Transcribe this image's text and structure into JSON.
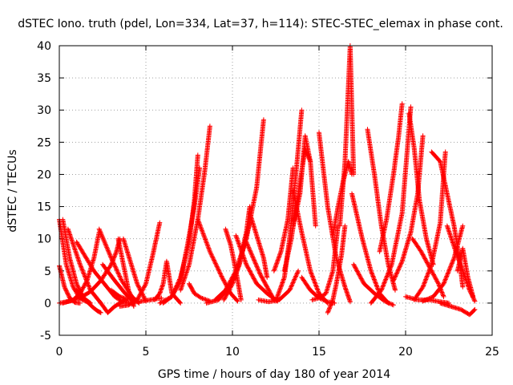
{
  "chart_data": {
    "type": "scatter",
    "title": "dSTEC Iono. truth (pdel, Lon=334, Lat=37, h=114): STEC-STEC_elemax in phase cont.",
    "xlabel": "GPS time / hours of day 180 of year 2014",
    "ylabel": "dSTEC  / TECUs",
    "xlim": [
      0,
      25
    ],
    "ylim": [
      -5,
      40
    ],
    "x_ticks": [
      "0",
      "5",
      "10",
      "15",
      "20",
      "25"
    ],
    "y_ticks": [
      "-5",
      "0",
      "5",
      "10",
      "15",
      "20",
      "25",
      "30",
      "35",
      "40"
    ],
    "grid": true,
    "marker": "+",
    "color": "#ff0000",
    "series": [
      {
        "x": [
          0.0,
          0.4,
          0.8,
          1.2,
          1.6
        ],
        "y": [
          13.0,
          6.0,
          2.5,
          0.7,
          0.2
        ]
      },
      {
        "x": [
          0.0,
          0.3,
          0.6,
          0.9,
          1.2
        ],
        "y": [
          5.8,
          2.5,
          0.8,
          0.1,
          0.0
        ]
      },
      {
        "x": [
          0.2,
          0.6,
          1.0,
          1.4,
          1.8
        ],
        "y": [
          13.0,
          7.0,
          3.0,
          0.8,
          0.0
        ]
      },
      {
        "x": [
          0.0,
          0.6,
          1.2,
          1.8,
          2.4,
          3.0,
          3.3,
          3.5
        ],
        "y": [
          0.0,
          0.3,
          0.8,
          1.8,
          3.5,
          6.0,
          8.0,
          10.0
        ]
      },
      {
        "x": [
          0.2,
          0.8,
          1.2,
          1.6,
          2.0,
          2.3
        ],
        "y": [
          0.0,
          0.5,
          1.5,
          3.5,
          7.0,
          11.0
        ]
      },
      {
        "x": [
          0.5,
          1.2,
          1.8,
          2.4,
          2.8,
          3.2,
          3.8
        ],
        "y": [
          11.5,
          6.0,
          2.0,
          0.0,
          -1.5,
          -0.5,
          0.5
        ]
      },
      {
        "x": [
          1.0,
          1.5,
          1.8,
          2.0,
          2.2,
          2.4
        ],
        "y": [
          2.0,
          0.5,
          -0.3,
          -0.8,
          -1.2,
          -1.5
        ]
      },
      {
        "x": [
          1.0,
          2.0,
          2.6,
          3.2,
          3.6,
          4.0
        ],
        "y": [
          9.5,
          5.0,
          3.0,
          1.0,
          0.3,
          0.0
        ]
      },
      {
        "x": [
          2.3,
          3.0,
          3.6,
          4.2,
          4.6
        ],
        "y": [
          11.5,
          7.0,
          3.5,
          1.0,
          0.0
        ]
      },
      {
        "x": [
          2.5,
          3.2,
          3.8,
          4.3
        ],
        "y": [
          6.0,
          3.5,
          1.5,
          0.2
        ]
      },
      {
        "x": [
          3.0,
          3.5,
          3.9,
          4.2
        ],
        "y": [
          2.0,
          1.0,
          0.6,
          0.8
        ]
      },
      {
        "x": [
          3.4,
          3.7,
          4.0,
          4.3
        ],
        "y": [
          10.0,
          6.0,
          2.0,
          -0.5
        ]
      },
      {
        "x": [
          3.7,
          4.1,
          4.5,
          5.0
        ],
        "y": [
          10.0,
          6.5,
          3.0,
          0.3
        ]
      },
      {
        "x": [
          3.5,
          4.0,
          4.5,
          5.0,
          5.4,
          5.8
        ],
        "y": [
          -0.5,
          -0.3,
          0.5,
          3.0,
          7.5,
          12.5
        ]
      },
      {
        "x": [
          4.0,
          4.5,
          5.0,
          5.5,
          5.9
        ],
        "y": [
          0.0,
          0.2,
          0.4,
          0.6,
          0.8
        ]
      },
      {
        "x": [
          5.5,
          5.8,
          6.0,
          6.2,
          6.5,
          7.0
        ],
        "y": [
          0.5,
          1.5,
          3.0,
          6.5,
          1.5,
          0.0
        ]
      },
      {
        "x": [
          5.8,
          6.5,
          7.0,
          7.4,
          7.8,
          8.1
        ],
        "y": [
          0.0,
          1.0,
          3.5,
          9.0,
          15.0,
          21.0
        ]
      },
      {
        "x": [
          6.0,
          6.5,
          7.0,
          7.5,
          7.8,
          8.0
        ],
        "y": [
          0.0,
          1.0,
          4.0,
          9.5,
          16.0,
          23.0
        ]
      },
      {
        "x": [
          7.0,
          7.5,
          8.0,
          8.4,
          8.7
        ],
        "y": [
          2.0,
          6.0,
          13.0,
          20.5,
          27.5
        ]
      },
      {
        "x": [
          7.5,
          7.8,
          8.2,
          8.7
        ],
        "y": [
          3.0,
          1.5,
          0.8,
          0.3
        ]
      },
      {
        "x": [
          8.0,
          8.7,
          9.4,
          9.9,
          10.3
        ],
        "y": [
          13.0,
          8.0,
          4.0,
          1.5,
          0.3
        ]
      },
      {
        "x": [
          8.5,
          9.2,
          9.8,
          10.4,
          11.0
        ],
        "y": [
          0.0,
          0.5,
          2.5,
          6.0,
          12.5
        ]
      },
      {
        "x": [
          9.0,
          9.6,
          10.2,
          10.8,
          11.4,
          11.8
        ],
        "y": [
          0.5,
          2.0,
          5.0,
          10.0,
          18.0,
          28.5
        ]
      },
      {
        "x": [
          9.5,
          10.0,
          10.4,
          10.8,
          11.0
        ],
        "y": [
          0.5,
          3.0,
          6.0,
          11.0,
          15.0
        ]
      },
      {
        "x": [
          9.6,
          9.9,
          10.2,
          10.5
        ],
        "y": [
          11.5,
          9.0,
          5.0,
          0.5
        ]
      },
      {
        "x": [
          10.2,
          10.8,
          11.4,
          12.0,
          12.6
        ],
        "y": [
          10.5,
          6.0,
          3.0,
          1.5,
          0.3
        ]
      },
      {
        "x": [
          10.8,
          11.2,
          11.6,
          12.0,
          12.4
        ],
        "y": [
          9.5,
          7.0,
          4.5,
          2.5,
          0.5
        ]
      },
      {
        "x": [
          11.0,
          11.4,
          11.8,
          12.0
        ],
        "y": [
          14.0,
          10.5,
          7.0,
          4.0
        ]
      },
      {
        "x": [
          11.5,
          12.1,
          12.7,
          13.3,
          13.8
        ],
        "y": [
          0.5,
          0.2,
          0.5,
          2.0,
          5.0
        ]
      },
      {
        "x": [
          12.5,
          13.0,
          13.3,
          13.7,
          14.0
        ],
        "y": [
          0.3,
          4.0,
          10.0,
          21.0,
          30.0
        ]
      },
      {
        "x": [
          12.4,
          12.8,
          13.2,
          13.5
        ],
        "y": [
          5.0,
          8.0,
          13.0,
          21.0
        ]
      },
      {
        "x": [
          13.0,
          13.4,
          13.8,
          14.2,
          14.5
        ],
        "y": [
          5.0,
          10.0,
          17.0,
          24.0,
          22.0
        ]
      },
      {
        "x": [
          13.5,
          13.9,
          14.2,
          14.5,
          14.8
        ],
        "y": [
          12.0,
          17.0,
          26.0,
          22.0,
          12.0
        ]
      },
      {
        "x": [
          13.5,
          14.0,
          14.5,
          15.0,
          15.5
        ],
        "y": [
          17.5,
          11.0,
          5.0,
          1.5,
          0.0
        ]
      },
      {
        "x": [
          14.0,
          14.5,
          15.0,
          15.5,
          15.9
        ],
        "y": [
          4.0,
          2.0,
          0.8,
          0.2,
          0.0
        ]
      },
      {
        "x": [
          14.6,
          15.0,
          15.4,
          15.8,
          16.1
        ],
        "y": [
          0.5,
          0.8,
          1.5,
          5.0,
          12.0
        ]
      },
      {
        "x": [
          15.0,
          15.5,
          16.0,
          16.5,
          16.8
        ],
        "y": [
          26.5,
          15.0,
          7.0,
          2.5,
          0.2
        ]
      },
      {
        "x": [
          15.5,
          15.8,
          16.0,
          16.3,
          16.5
        ],
        "y": [
          -1.5,
          0.5,
          3.0,
          7.5,
          12.0
        ]
      },
      {
        "x": [
          15.8,
          16.1,
          16.4,
          16.7,
          16.9
        ],
        "y": [
          10.5,
          15.0,
          19.0,
          22.0,
          20.0
        ]
      },
      {
        "x": [
          16.2,
          16.5,
          16.8,
          17.0
        ],
        "y": [
          12.0,
          22.0,
          40.0,
          20.0
        ]
      },
      {
        "x": [
          16.9,
          17.5,
          18.0,
          18.5,
          19.0
        ],
        "y": [
          17.0,
          10.0,
          5.0,
          1.5,
          0.0
        ]
      },
      {
        "x": [
          17.0,
          17.6,
          18.2,
          18.8,
          19.3
        ],
        "y": [
          6.0,
          3.0,
          1.5,
          0.3,
          -0.3
        ]
      },
      {
        "x": [
          17.8,
          18.2,
          18.6,
          19.0,
          19.4
        ],
        "y": [
          27.0,
          20.0,
          12.0,
          6.0,
          2.0
        ]
      },
      {
        "x": [
          18.0,
          18.6,
          19.2,
          19.8,
          20.3
        ],
        "y": [
          0.0,
          2.0,
          6.0,
          14.0,
          30.5
        ]
      },
      {
        "x": [
          18.5,
          18.9,
          19.3,
          19.6,
          19.8
        ],
        "y": [
          8.0,
          13.0,
          20.0,
          26.0,
          31.0
        ]
      },
      {
        "x": [
          19.3,
          19.8,
          20.3,
          20.7,
          21.0
        ],
        "y": [
          3.5,
          6.5,
          11.0,
          17.0,
          26.0
        ]
      },
      {
        "x": [
          20.2,
          20.5,
          20.8,
          21.2,
          21.6
        ],
        "y": [
          29.5,
          24.0,
          16.0,
          10.0,
          6.0
        ]
      },
      {
        "x": [
          20.4,
          20.9,
          21.4,
          21.9,
          22.2
        ],
        "y": [
          10.0,
          8.0,
          5.5,
          3.0,
          1.0
        ]
      },
      {
        "x": [
          20.0,
          20.7,
          21.4,
          22.0,
          22.5
        ],
        "y": [
          1.0,
          0.5,
          0.5,
          0.2,
          0.0
        ]
      },
      {
        "x": [
          20.5,
          21.0,
          21.5,
          22.0,
          22.3
        ],
        "y": [
          0.5,
          2.5,
          6.0,
          12.5,
          23.5
        ]
      },
      {
        "x": [
          21.0,
          21.6,
          22.2,
          22.8,
          23.3
        ],
        "y": [
          0.3,
          1.0,
          3.0,
          7.0,
          12.0
        ]
      },
      {
        "x": [
          21.5,
          22.0,
          22.4,
          22.8,
          23.1,
          23.3
        ],
        "y": [
          23.5,
          22.0,
          17.0,
          12.0,
          7.0,
          2.5
        ]
      },
      {
        "x": [
          22.4,
          22.9,
          23.3,
          23.7,
          24.0
        ],
        "y": [
          12.0,
          8.0,
          5.0,
          2.0,
          0.3
        ]
      },
      {
        "x": [
          22.0,
          22.6,
          23.2,
          23.7,
          24.0
        ],
        "y": [
          0.0,
          -0.5,
          -1.0,
          -1.8,
          -1.0
        ]
      },
      {
        "x": [
          23.0,
          23.3,
          23.6,
          23.9
        ],
        "y": [
          5.0,
          8.5,
          4.0,
          1.0
        ]
      }
    ]
  }
}
